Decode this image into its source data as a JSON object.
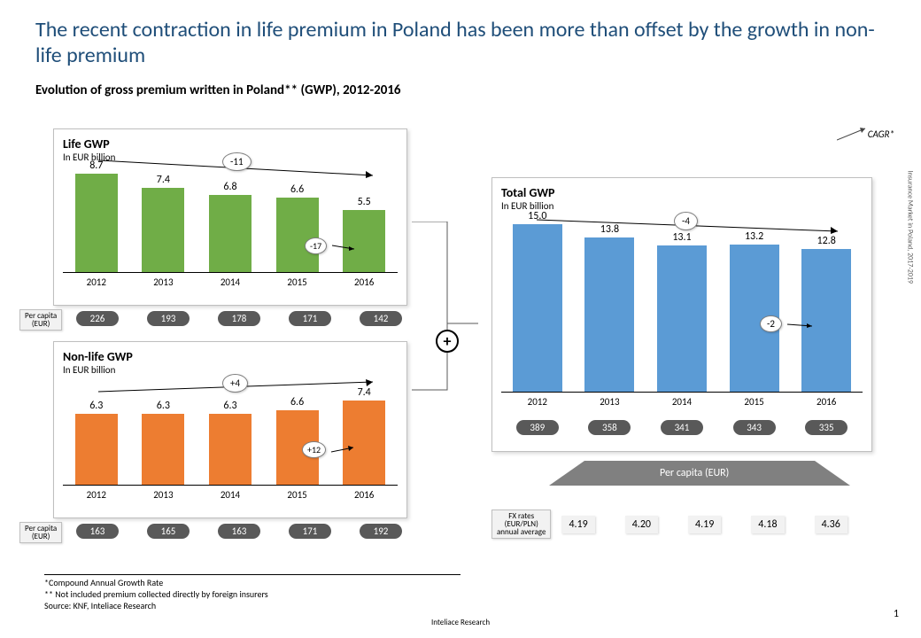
{
  "title": "The recent contraction in life premium in Poland has been more than offset by the growth in non-life premium",
  "subtitle": "Evolution of gross premium written in Poland** (GWP), 2012-2016",
  "cagr_label": "CAGR*",
  "years": [
    "2012",
    "2013",
    "2014",
    "2015",
    "2016"
  ],
  "life": {
    "title": "Life GWP",
    "sub": "In EUR billion",
    "values": [
      8.7,
      7.4,
      6.8,
      6.6,
      5.5
    ],
    "color": "#70ad47",
    "ymax": 9.0,
    "trend_overall": "-11",
    "trend_last": "-17",
    "per_capita": [
      226,
      193,
      178,
      171,
      142
    ]
  },
  "nonlife": {
    "title": "Non-life GWP",
    "sub": "In EUR billion",
    "values": [
      6.3,
      6.3,
      6.3,
      6.6,
      7.4
    ],
    "color": "#ed7d31",
    "ymax": 9.0,
    "trend_overall": "+4",
    "trend_last": "+12",
    "per_capita": [
      163,
      165,
      163,
      171,
      192
    ]
  },
  "total": {
    "title": "Total GWP",
    "sub": "In EUR billion",
    "values": [
      15.0,
      13.8,
      13.1,
      13.2,
      12.8
    ],
    "color": "#5b9bd5",
    "ymax": 15.5,
    "trend_overall": "-4",
    "trend_last": "-2",
    "per_capita": [
      389,
      358,
      341,
      343,
      335
    ]
  },
  "per_capita_label": "Per capita\n(EUR)",
  "per_capita_banner": "Per capita (EUR)",
  "fx": {
    "label": "FX rates\n(EUR/PLN)\nannual average",
    "values": [
      4.19,
      4.2,
      4.19,
      4.18,
      4.36
    ]
  },
  "footnotes": [
    "*Compound Annual Growth Rate",
    "** Not included premium collected directly by foreign insurers",
    "Source: KNF, Inteliace Research"
  ],
  "footer": "Inteliace Research",
  "side_text": "Insurance Market in Poland, 2017-2019",
  "page": "1"
}
